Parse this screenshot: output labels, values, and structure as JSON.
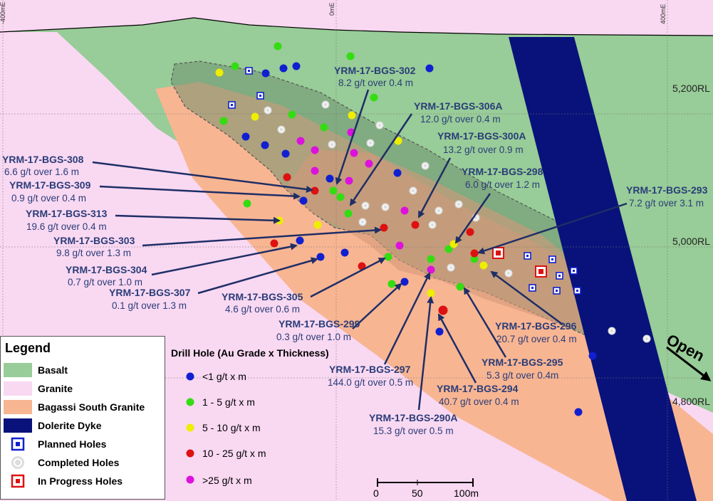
{
  "axes": {
    "top_labels": [
      "-400mE",
      "0mE",
      "400mE"
    ],
    "rl_labels": [
      "5,200RL",
      "5,000RL",
      "4,800RL"
    ]
  },
  "open_label": "Open",
  "legend": {
    "title": "Legend",
    "items": [
      {
        "label": "Basalt",
        "color": "#98cc98"
      },
      {
        "label": "Granite",
        "color": "#f9d8f2"
      },
      {
        "label": "Bagassi South Granite",
        "color": "#f8b592"
      },
      {
        "label": "Dolerite Dyke",
        "color": "#08127a"
      },
      {
        "label": "Planned Holes",
        "symbol": "planned"
      },
      {
        "label": "Completed Holes",
        "symbol": "completed"
      },
      {
        "label": "In Progress Holes",
        "symbol": "inprogress"
      }
    ]
  },
  "grade_legend": {
    "title": "Drill Hole (Au Grade x Thickness)",
    "items": [
      {
        "label": "<1 g/t x m",
        "color": "#1020d0"
      },
      {
        "label": "1 - 5 g/t x m",
        "color": "#33dd11"
      },
      {
        "label": "5 - 10 g/t x m",
        "color": "#eeee00"
      },
      {
        "label": "10 - 25 g/t x m",
        "color": "#dd1111"
      },
      {
        "label": ">25 g/t x m",
        "color": "#dd11dd"
      }
    ]
  },
  "scale_bar": {
    "labels": [
      "0",
      "50",
      "100m"
    ]
  },
  "callouts": [
    {
      "title": "YRM-17-BGS-302",
      "sub": "8.2 g/t over 0.4 m"
    },
    {
      "title": "YRM-17-BGS-306A",
      "sub": "12.0 g/t over 0.4 m"
    },
    {
      "title": "YRM-17-BGS-300A",
      "sub": "13.2 g/t over 0.9 m"
    },
    {
      "title": "YRM-17-BGS-298",
      "sub": "6.0 g/t over 1.2 m"
    },
    {
      "title": "YRM-17-BGS-293",
      "sub": "7.2 g/t over 3.1 m"
    },
    {
      "title": "YRM-17-BGS-308",
      "sub": "6.6 g/t over 1.6 m"
    },
    {
      "title": "YRM-17-BGS-309",
      "sub": "0.9 g/t over 0.4 m"
    },
    {
      "title": "YRM-17-BGS-313",
      "sub": "19.6 g/t over 0.4 m"
    },
    {
      "title": "YRM-17-BGS-303",
      "sub": "9.8 g/t over 1.3 m"
    },
    {
      "title": "YRM-17-BGS-304",
      "sub": "0.7 g/t over 1.0 m"
    },
    {
      "title": "YRM-17-BGS-307",
      "sub": "0.1 g/t over 1.3 m"
    },
    {
      "title": "YRM-17-BGS-305",
      "sub": "4.6 g/t over 0.6 m"
    },
    {
      "title": "YRM-17-BGS-299",
      "sub": "0.3 g/t over 1.0 m"
    },
    {
      "title": "YRM-17-BGS-296",
      "sub": "20.7 g/t over 0.4 m"
    },
    {
      "title": "YRM-17-BGS-297",
      "sub": "144.0 g/t over 0.5 m"
    },
    {
      "title": "YRM-17-BGS-295",
      "sub": "5.3 g/t over 0.4m"
    },
    {
      "title": "YRM-17-BGS-294",
      "sub": "40.7 g/t over 0.4 m"
    },
    {
      "title": "YRM-17-BGS-290A",
      "sub": "15.3 g/t over 0.5 m"
    }
  ]
}
